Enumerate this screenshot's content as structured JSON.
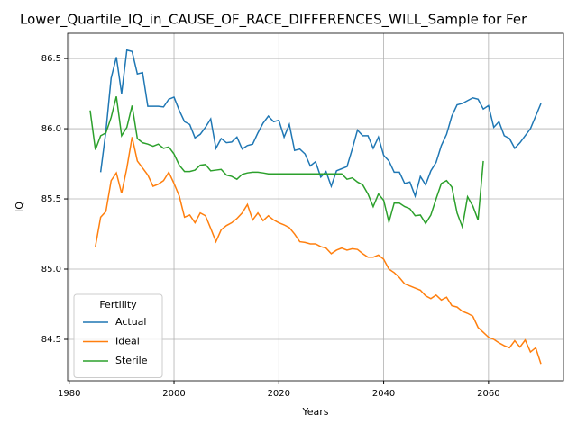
{
  "chart_data": {
    "type": "line",
    "title": "Lower_Quartile_IQ_in_CAUSE_OF_RACE_DIFFERENCES_WILL_Sample for Fer",
    "xlabel": "Years",
    "ylabel": "IQ",
    "x": [
      1984,
      1985,
      1986,
      1987,
      1988,
      1989,
      1990,
      1991,
      1992,
      1993,
      1994,
      1995,
      1996,
      1997,
      1998,
      1999,
      2000,
      2001,
      2002,
      2003,
      2004,
      2005,
      2006,
      2007,
      2008,
      2009,
      2010,
      2011,
      2012,
      2013,
      2014,
      2015,
      2016,
      2017,
      2018,
      2019,
      2020,
      2021,
      2022,
      2023,
      2024,
      2025,
      2026,
      2027,
      2028,
      2029,
      2030,
      2031,
      2032,
      2033,
      2034,
      2035,
      2036,
      2037,
      2038,
      2039,
      2040,
      2041,
      2042,
      2043,
      2044,
      2045,
      2046,
      2047,
      2048,
      2049,
      2050,
      2051,
      2052,
      2053,
      2054,
      2055,
      2056,
      2057,
      2058,
      2059,
      2060,
      2061,
      2062,
      2063,
      2064,
      2065,
      2066,
      2067,
      2068,
      2069,
      2070
    ],
    "series": [
      {
        "name": "Actual",
        "color": "#1f77b4",
        "values": [
          null,
          null,
          85.69,
          85.98,
          86.36,
          86.51,
          86.25,
          86.56,
          86.55,
          86.39,
          86.4,
          86.16,
          86.16,
          86.16,
          86.155,
          86.21,
          86.225,
          86.13,
          86.05,
          86.03,
          85.935,
          85.96,
          86.01,
          86.07,
          85.86,
          85.93,
          85.9,
          85.905,
          85.94,
          85.855,
          85.88,
          85.89,
          85.97,
          86.04,
          86.09,
          86.05,
          86.06,
          85.94,
          86.03,
          85.845,
          85.855,
          85.82,
          85.735,
          85.765,
          85.655,
          85.695,
          85.59,
          85.7,
          85.715,
          85.73,
          85.855,
          85.99,
          85.95,
          85.95,
          85.86,
          85.94,
          85.81,
          85.77,
          85.69,
          85.69,
          85.61,
          85.62,
          85.52,
          85.66,
          85.6,
          85.7,
          85.76,
          85.88,
          85.96,
          86.09,
          86.17,
          86.18,
          86.2,
          86.22,
          86.21,
          86.14,
          86.165,
          86.01,
          86.05,
          85.95,
          85.93,
          85.86,
          85.9,
          85.95,
          86.0,
          86.09,
          86.18
        ]
      },
      {
        "name": "Ideal",
        "color": "#ff7f0e",
        "values": [
          null,
          85.16,
          85.37,
          85.41,
          85.63,
          85.685,
          85.54,
          85.72,
          85.94,
          85.77,
          85.72,
          85.67,
          85.59,
          85.605,
          85.63,
          85.69,
          85.61,
          85.52,
          85.37,
          85.385,
          85.33,
          85.4,
          85.38,
          85.29,
          85.195,
          85.28,
          85.31,
          85.33,
          85.36,
          85.4,
          85.46,
          85.35,
          85.4,
          85.345,
          85.38,
          85.35,
          85.33,
          85.315,
          85.295,
          85.25,
          85.195,
          85.19,
          85.18,
          85.18,
          85.16,
          85.15,
          85.11,
          85.135,
          85.15,
          85.135,
          85.145,
          85.14,
          85.11,
          85.085,
          85.085,
          85.1,
          85.07,
          85.0,
          84.975,
          84.94,
          84.895,
          84.88,
          84.865,
          84.85,
          84.81,
          84.79,
          84.815,
          84.78,
          84.8,
          84.74,
          84.73,
          84.7,
          84.685,
          84.665,
          84.585,
          84.55,
          84.515,
          84.5,
          84.475,
          84.455,
          84.44,
          84.49,
          84.445,
          84.495,
          84.41,
          84.44,
          84.325
        ]
      },
      {
        "name": "Sterile",
        "color": "#2ca02c",
        "values": [
          86.13,
          85.85,
          85.95,
          85.97,
          86.08,
          86.23,
          85.95,
          86.01,
          86.165,
          85.93,
          85.9,
          85.89,
          85.875,
          85.89,
          85.86,
          85.87,
          85.82,
          85.74,
          85.695,
          85.695,
          85.705,
          85.74,
          85.745,
          85.7,
          85.705,
          85.71,
          85.67,
          85.66,
          85.64,
          85.675,
          85.685,
          85.69,
          85.69,
          85.685,
          85.678,
          85.678,
          85.678,
          85.678,
          85.678,
          85.678,
          85.678,
          85.678,
          85.678,
          85.678,
          85.678,
          85.678,
          85.678,
          85.678,
          85.678,
          85.64,
          85.65,
          85.62,
          85.6,
          85.535,
          85.445,
          85.535,
          85.49,
          85.335,
          85.47,
          85.47,
          85.445,
          85.43,
          85.38,
          85.385,
          85.325,
          85.385,
          85.5,
          85.61,
          85.63,
          85.585,
          85.4,
          85.3,
          85.515,
          85.45,
          85.35,
          85.77,
          null,
          null,
          null,
          null,
          null,
          null,
          null,
          null,
          null,
          null,
          null
        ]
      }
    ],
    "xlim": [
      1979.7,
      2074.3
    ],
    "ylim": [
      84.205,
      86.68
    ],
    "xticks": [
      1980,
      2000,
      2020,
      2040,
      2060
    ],
    "yticks": [
      84.5,
      {
        "value": 85.0,
        "label": "85.0"
      },
      85.5,
      {
        "value": 86.0,
        "label": "86.0"
      },
      86.5
    ],
    "grid": true,
    "legend_title": "Fertility",
    "legend": "lower left"
  }
}
